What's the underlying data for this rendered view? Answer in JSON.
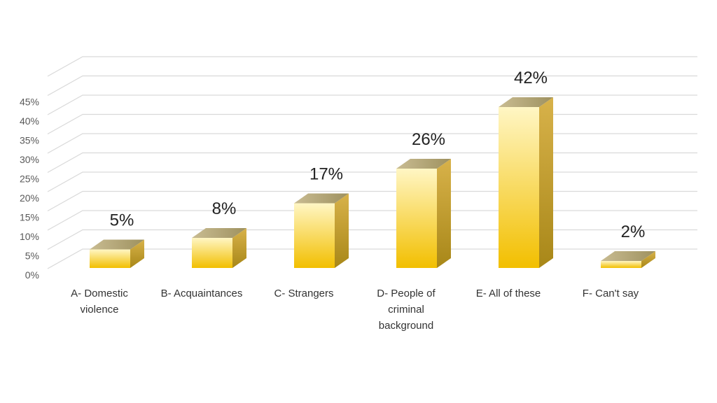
{
  "chart_data": {
    "type": "bar",
    "style": "3d-column",
    "categories": [
      [
        "A- Domestic",
        "violence"
      ],
      [
        "B- Acquaintances"
      ],
      [
        "C- Strangers"
      ],
      [
        "D- People of",
        "criminal",
        "background"
      ],
      [
        "E- All of these"
      ],
      [
        "F- Can't say"
      ]
    ],
    "values": [
      5,
      8,
      17,
      26,
      42,
      2
    ],
    "data_labels": [
      "5%",
      "8%",
      "17%",
      "26%",
      "42%",
      "2%"
    ],
    "y_ticks": [
      "0%",
      "5%",
      "10%",
      "15%",
      "20%",
      "25%",
      "30%",
      "35%",
      "40%",
      "45%"
    ],
    "ylim": [
      0,
      50
    ],
    "grid": true,
    "legend": "none",
    "colors": {
      "bar_front_light": "#FFF6C4",
      "bar_front_dark": "#F2BF00",
      "bar_side_light": "#D8B24A",
      "bar_side_dark": "#A88718",
      "bar_top_light": "#C9BC92",
      "bar_top_dark": "#9E915F",
      "grid": "#D9D9D9"
    }
  }
}
